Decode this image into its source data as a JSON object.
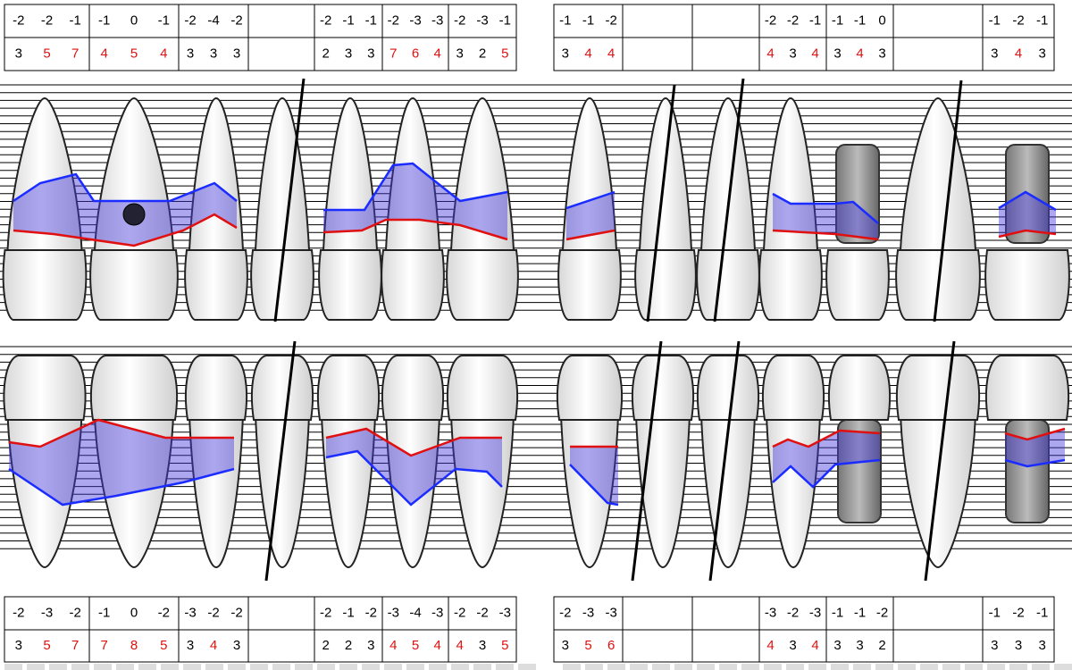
{
  "top_table": {
    "left": [
      {
        "row1": [
          -2,
          -2,
          -1
        ],
        "row2": [
          3,
          5,
          7
        ]
      },
      {
        "row1": [
          -1,
          0,
          -1
        ],
        "row2": [
          4,
          5,
          4
        ]
      },
      {
        "row1": [
          -2,
          -4,
          -2
        ],
        "row2": [
          3,
          3,
          3
        ]
      },
      null,
      {
        "row1": [
          -2,
          -1,
          -1
        ],
        "row2": [
          2,
          3,
          3
        ]
      },
      {
        "row1": [
          -2,
          -3,
          -3
        ],
        "row2": [
          7,
          6,
          4
        ]
      },
      {
        "row1": [
          -2,
          -3,
          -1
        ],
        "row2": [
          3,
          2,
          5
        ]
      }
    ],
    "right": [
      {
        "row1": [
          -1,
          -1,
          -2
        ],
        "row2": [
          3,
          4,
          4
        ]
      },
      null,
      null,
      {
        "row1": [
          -2,
          -2,
          -1
        ],
        "row2": [
          4,
          3,
          4
        ]
      },
      {
        "row1": [
          -1,
          -1,
          0
        ],
        "row2": [
          3,
          4,
          3
        ]
      },
      null,
      {
        "row1": [
          -1,
          -2,
          -1
        ],
        "row2": [
          3,
          4,
          3
        ]
      }
    ]
  },
  "bottom_table": {
    "left": [
      {
        "row1": [
          -2,
          -3,
          -2
        ],
        "row2": [
          3,
          5,
          7
        ]
      },
      {
        "row1": [
          -1,
          0,
          -2
        ],
        "row2": [
          7,
          8,
          5
        ]
      },
      {
        "row1": [
          -3,
          -2,
          -2
        ],
        "row2": [
          3,
          4,
          3
        ]
      },
      null,
      {
        "row1": [
          -2,
          -1,
          -2
        ],
        "row2": [
          2,
          2,
          3
        ]
      },
      {
        "row1": [
          -3,
          -4,
          -3
        ],
        "row2": [
          4,
          5,
          4
        ]
      },
      {
        "row1": [
          -2,
          -2,
          -3
        ],
        "row2": [
          4,
          3,
          5
        ]
      }
    ],
    "right": [
      {
        "row1": [
          -2,
          -3,
          -3
        ],
        "row2": [
          3,
          5,
          6
        ]
      },
      null,
      null,
      {
        "row1": [
          -3,
          -2,
          -3
        ],
        "row2": [
          4,
          3,
          4
        ]
      },
      {
        "row1": [
          -1,
          -1,
          -2
        ],
        "row2": [
          3,
          3,
          2
        ]
      },
      null,
      {
        "row1": [
          -1,
          -2,
          -1
        ],
        "row2": [
          3,
          3,
          3
        ]
      }
    ]
  }
}
